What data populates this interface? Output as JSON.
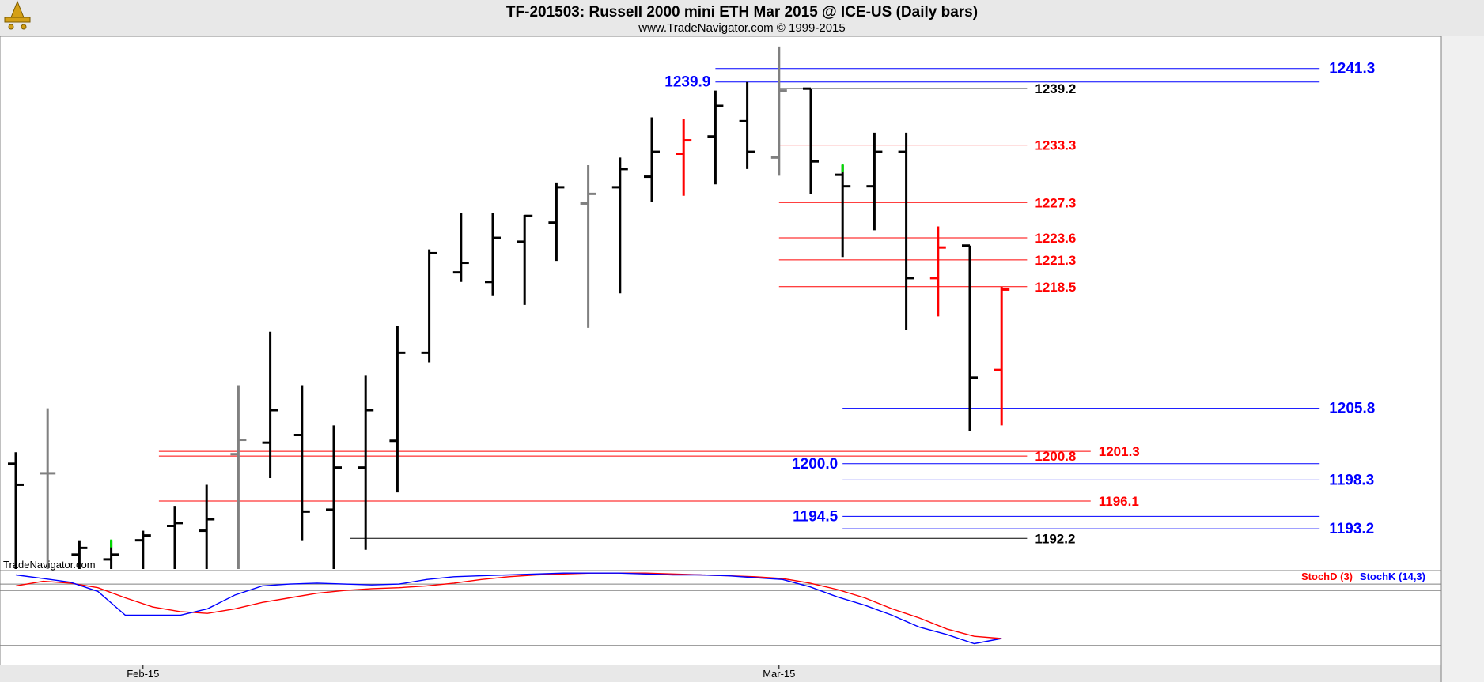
{
  "chart_data": {
    "type": "ohlc",
    "title": "TF-201503:  Russell 2000 mini ETH Mar 2015 @ ICE-US  (Daily bars)",
    "subtitle": "www.TradeNavigator.com © 1999-2015",
    "watermark": "TradeNavigator.com",
    "price_axis": {
      "min": 1189,
      "max": 1244.5,
      "ticks": [
        1190,
        1192,
        1194,
        1196,
        1198,
        1200,
        1202,
        1204,
        1206,
        1208,
        1210,
        1212,
        1214,
        1216,
        1218,
        1220,
        1222,
        1224,
        1226,
        1228,
        1230,
        1232,
        1234,
        1236,
        1238,
        1240,
        1242,
        1244
      ],
      "last_price": "1218.2",
      "last_price_value": 1218.2
    },
    "date_labels": [
      {
        "label": "Feb-15",
        "index": 4
      },
      {
        "label": "Mar-15",
        "index": 24
      }
    ],
    "bars": [
      {
        "o": 1200.0,
        "h": 1201.2,
        "l": 1189.0,
        "c": 1197.8,
        "color": "#000000"
      },
      {
        "o": 1199.0,
        "h": 1205.8,
        "l": 1189.0,
        "c": 1199.0,
        "color": "#808080"
      },
      {
        "o": 1190.5,
        "h": 1192.0,
        "l": 1189.0,
        "c": 1191.2,
        "color": "#000000"
      },
      {
        "o": 1190.0,
        "h": 1192.0,
        "l": 1189.0,
        "c": 1190.5,
        "color": "#000000",
        "high_mark_color": "#00dd00"
      },
      {
        "o": 1192.0,
        "h": 1193.0,
        "l": 1189.0,
        "c": 1192.5,
        "color": "#000000"
      },
      {
        "o": 1193.5,
        "h": 1195.6,
        "l": 1189.0,
        "c": 1193.8,
        "color": "#000000"
      },
      {
        "o": 1193.0,
        "h": 1197.8,
        "l": 1189.0,
        "c": 1194.2,
        "color": "#000000"
      },
      {
        "o": 1201.0,
        "h": 1208.2,
        "l": 1189.0,
        "c": 1202.5,
        "color": "#808080"
      },
      {
        "o": 1202.2,
        "h": 1213.8,
        "l": 1198.5,
        "c": 1205.6,
        "color": "#000000"
      },
      {
        "o": 1203.0,
        "h": 1208.2,
        "l": 1192.0,
        "c": 1195.0,
        "color": "#000000"
      },
      {
        "o": 1195.2,
        "h": 1204.0,
        "l": 1189.0,
        "c": 1199.6,
        "color": "#000000"
      },
      {
        "o": 1199.6,
        "h": 1209.2,
        "l": 1191.0,
        "c": 1205.6,
        "color": "#000000"
      },
      {
        "o": 1202.4,
        "h": 1214.4,
        "l": 1197.0,
        "c": 1211.6,
        "color": "#000000"
      },
      {
        "o": 1211.6,
        "h": 1222.4,
        "l": 1210.6,
        "c": 1222.0,
        "color": "#000000"
      },
      {
        "o": 1220.0,
        "h": 1226.2,
        "l": 1219.0,
        "c": 1221.0,
        "color": "#000000"
      },
      {
        "o": 1219.0,
        "h": 1226.2,
        "l": 1217.6,
        "c": 1223.6,
        "color": "#000000"
      },
      {
        "o": 1223.2,
        "h": 1226.0,
        "l": 1216.6,
        "c": 1225.9,
        "color": "#000000"
      },
      {
        "o": 1225.2,
        "h": 1229.4,
        "l": 1221.2,
        "c": 1228.9,
        "color": "#000000"
      },
      {
        "o": 1227.2,
        "h": 1231.2,
        "l": 1214.2,
        "c": 1228.2,
        "color": "#808080"
      },
      {
        "o": 1228.9,
        "h": 1232.0,
        "l": 1217.8,
        "c": 1230.8,
        "color": "#000000"
      },
      {
        "o": 1230.0,
        "h": 1236.2,
        "l": 1227.4,
        "c": 1232.6,
        "color": "#000000"
      },
      {
        "o": 1232.4,
        "h": 1236.0,
        "l": 1228.0,
        "c": 1233.8,
        "color": "#ff0000"
      },
      {
        "o": 1234.2,
        "h": 1239.0,
        "l": 1229.2,
        "c": 1237.4,
        "color": "#000000"
      },
      {
        "o": 1235.8,
        "h": 1239.9,
        "l": 1230.8,
        "c": 1232.6,
        "color": "#000000"
      },
      {
        "o": 1232.0,
        "h": 1243.6,
        "l": 1230.1,
        "c": 1239.0,
        "color": "#808080"
      },
      {
        "o": 1239.2,
        "h": 1239.2,
        "l": 1228.2,
        "c": 1231.6,
        "color": "#000000"
      },
      {
        "o": 1230.2,
        "h": 1231.2,
        "l": 1221.6,
        "c": 1229.0,
        "color": "#000000",
        "high_mark_color": "#00dd00"
      },
      {
        "o": 1229.0,
        "h": 1234.6,
        "l": 1224.4,
        "c": 1232.6,
        "color": "#000000"
      },
      {
        "o": 1232.6,
        "h": 1234.6,
        "l": 1214.0,
        "c": 1219.4,
        "color": "#000000"
      },
      {
        "o": 1219.4,
        "h": 1224.8,
        "l": 1215.4,
        "c": 1222.6,
        "color": "#ff0000"
      },
      {
        "o": 1222.8,
        "h": 1222.8,
        "l": 1203.4,
        "c": 1209.0,
        "color": "#000000"
      },
      {
        "o": 1209.8,
        "h": 1218.5,
        "l": 1204.0,
        "c": 1218.2,
        "color": "#ff0000"
      }
    ],
    "levels": [
      {
        "value": 1241.3,
        "label": "1241.3",
        "color": "#0000ff",
        "start": 22,
        "end": 41,
        "label_pos": "right"
      },
      {
        "value": 1239.9,
        "label": "1239.9",
        "color": "#0000ff",
        "start": 22,
        "end": 41,
        "label_pos": "left"
      },
      {
        "value": 1239.2,
        "label": "1239.2",
        "color": "#000000",
        "start": 24,
        "end": 31.8,
        "label_pos": "end"
      },
      {
        "value": 1233.3,
        "label": "1233.3",
        "color": "#ff0000",
        "start": 24,
        "end": 31.8,
        "label_pos": "end"
      },
      {
        "value": 1227.3,
        "label": "1227.3",
        "color": "#ff0000",
        "start": 24,
        "end": 31.8,
        "label_pos": "end"
      },
      {
        "value": 1223.6,
        "label": "1223.6",
        "color": "#ff0000",
        "start": 24,
        "end": 31.8,
        "label_pos": "end"
      },
      {
        "value": 1221.3,
        "label": "1221.3",
        "color": "#ff0000",
        "start": 24,
        "end": 31.8,
        "label_pos": "end"
      },
      {
        "value": 1218.5,
        "label": "1218.5",
        "color": "#ff0000",
        "start": 24,
        "end": 31.8,
        "label_pos": "end"
      },
      {
        "value": 1205.8,
        "label": "1205.8",
        "color": "#0000ff",
        "start": 26,
        "end": 41,
        "label_pos": "right"
      },
      {
        "value": 1201.3,
        "label": "1201.3",
        "color": "#ff0000",
        "start": 4.5,
        "end": 33.8,
        "label_pos": "end"
      },
      {
        "value": 1200.8,
        "label": "1200.8",
        "color": "#ff0000",
        "start": 4.5,
        "end": 31.8,
        "label_pos": "end"
      },
      {
        "value": 1200.0,
        "label": "1200.0",
        "color": "#0000ff",
        "start": 26,
        "end": 41,
        "label_pos": "left"
      },
      {
        "value": 1198.3,
        "label": "1198.3",
        "color": "#0000ff",
        "start": 26,
        "end": 41,
        "label_pos": "right"
      },
      {
        "value": 1196.1,
        "label": "1196.1",
        "color": "#ff0000",
        "start": 4.5,
        "end": 33.8,
        "label_pos": "end"
      },
      {
        "value": 1194.5,
        "label": "1194.5",
        "color": "#0000ff",
        "start": 26,
        "end": 41,
        "label_pos": "left"
      },
      {
        "value": 1193.2,
        "label": "1193.2",
        "color": "#0000ff",
        "start": 26,
        "end": 41,
        "label_pos": "right"
      },
      {
        "value": 1192.2,
        "label": "1192.2",
        "color": "#000000",
        "start": 10.5,
        "end": 31.8,
        "label_pos": "end"
      }
    ],
    "stochastic": {
      "ticks": [
        50,
        100
      ],
      "last_value": "27.64",
      "legend": [
        {
          "name": "StochD (3)",
          "color": "#ff0000"
        },
        {
          "name": "StochK (14,3)",
          "color": "#0000ff"
        }
      ],
      "stochK": [
        97,
        93,
        89,
        79,
        53,
        53,
        53,
        60,
        75,
        85,
        87,
        88,
        87,
        86,
        87,
        92,
        95,
        96,
        97,
        98,
        99,
        99,
        99,
        98,
        97,
        97,
        96,
        94,
        92,
        84,
        73,
        64,
        53,
        40,
        32,
        22,
        27.6
      ],
      "stochD": [
        85,
        90,
        88,
        83,
        72,
        62,
        57,
        55,
        60,
        67,
        72,
        77,
        80,
        82,
        83,
        85,
        88,
        92,
        95,
        97,
        98,
        99,
        99,
        99,
        98,
        97,
        96,
        95,
        93,
        88,
        81,
        72,
        60,
        50,
        38,
        30,
        27.6
      ],
      "lines": [
        87,
        80,
        20
      ]
    }
  }
}
